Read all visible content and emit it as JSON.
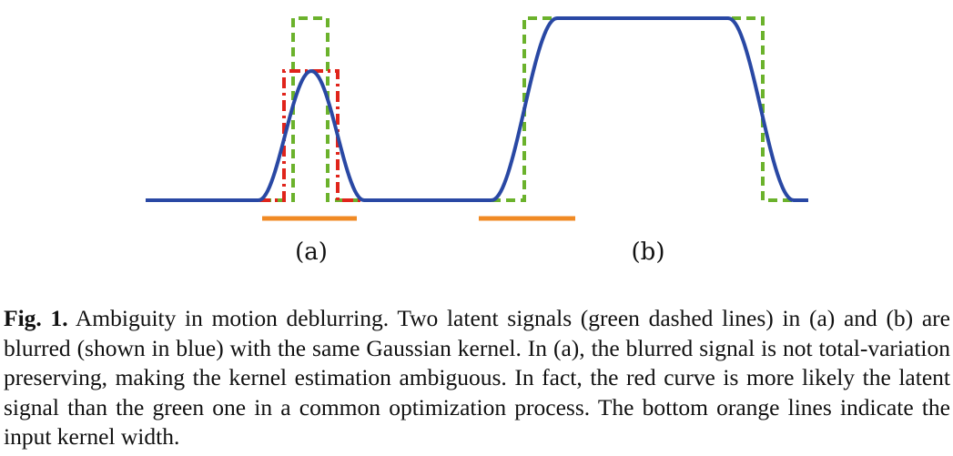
{
  "figure": {
    "panels": [
      {
        "label": "(a)"
      },
      {
        "label": "(b)"
      }
    ],
    "colors": {
      "green": "#6bb22c",
      "red": "#e0241b",
      "blue": "#2948a4",
      "orange": "#f08a24"
    }
  },
  "caption": {
    "label": "Fig. 1.",
    "text": " Ambiguity in motion deblurring. Two latent signals (green dashed lines) in (a) and (b) are blurred (shown in blue) with the same Gaussian kernel. In (a), the blurred signal is not total-variation preserving, making the kernel estimation ambiguous. In fact, the red curve is more likely the latent signal than the green one in a common optimization process. The bottom orange lines indicate the input kernel width."
  }
}
